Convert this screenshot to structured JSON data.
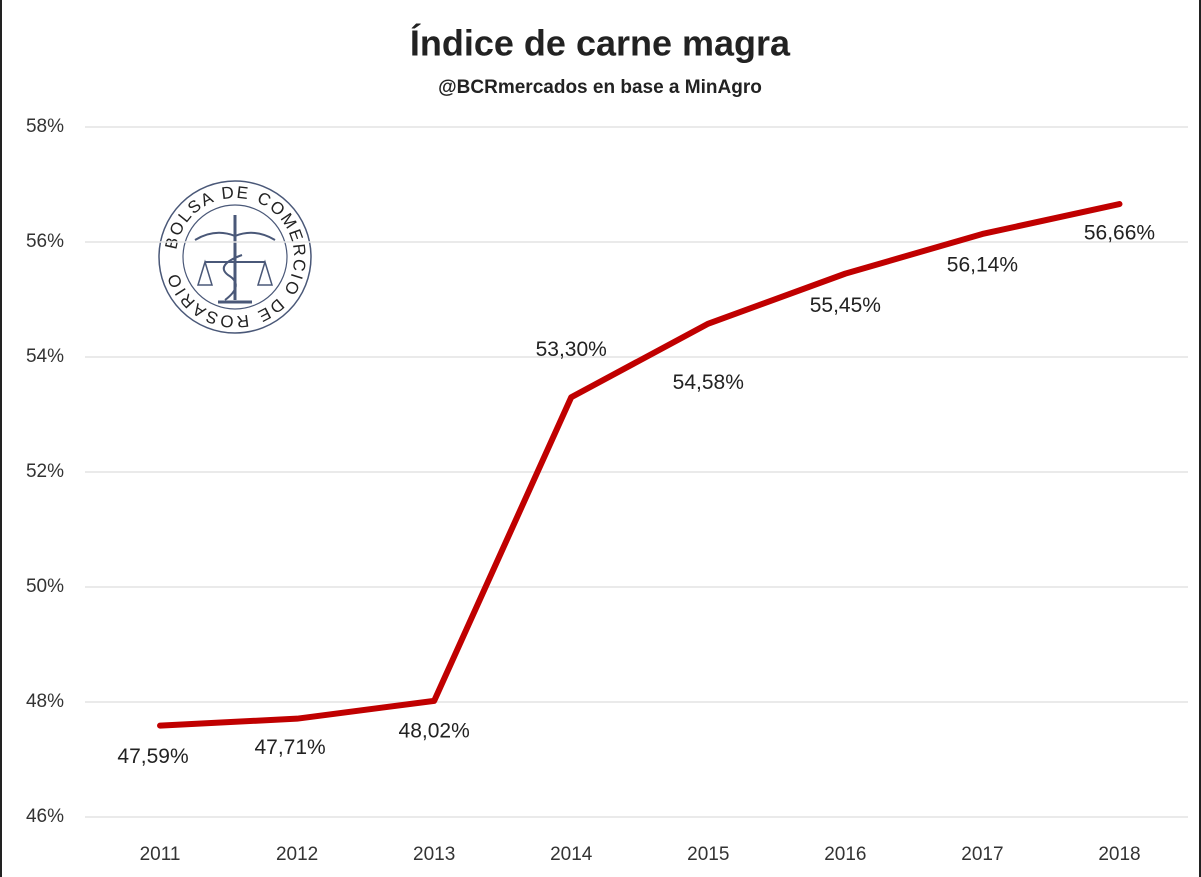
{
  "chart_data": {
    "type": "line",
    "title": "Índice de carne magra",
    "subtitle": "@BCRmercados  en base a MinAgro",
    "logo_text": "BOLSA DE COMERCIO DE ROSARIO",
    "categories": [
      "2011",
      "2012",
      "2013",
      "2014",
      "2015",
      "2016",
      "2017",
      "2018"
    ],
    "series": [
      {
        "name": "Índice de carne magra",
        "color": "#c00000",
        "values": [
          47.59,
          47.71,
          48.02,
          53.3,
          54.58,
          55.45,
          56.14,
          56.66
        ],
        "value_labels": [
          "47,59%",
          "47,71%",
          "48,02%",
          "53,30%",
          "54,58%",
          "55,45%",
          "56,14%",
          "56,66%"
        ]
      }
    ],
    "ylim": [
      46,
      58
    ],
    "yticks": [
      {
        "value": 46,
        "label": "46%"
      },
      {
        "value": 48,
        "label": "48%"
      },
      {
        "value": 50,
        "label": "50%"
      },
      {
        "value": 52,
        "label": "52%"
      },
      {
        "value": 54,
        "label": "54%"
      },
      {
        "value": 56,
        "label": "56%"
      },
      {
        "value": 58,
        "label": "58%"
      }
    ],
    "grid": true
  }
}
